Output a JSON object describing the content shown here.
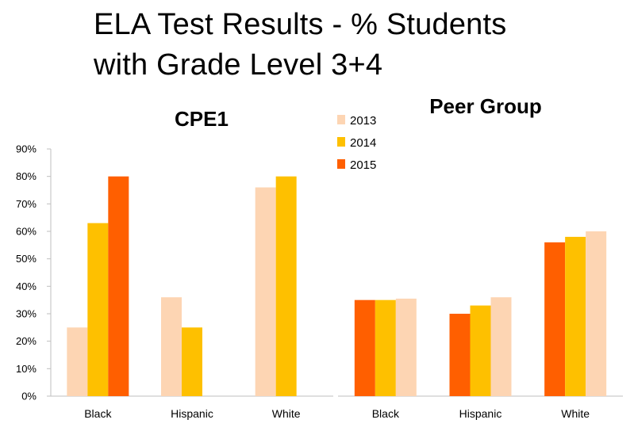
{
  "title": {
    "line1": "ELA Test Results - % Students",
    "line2": "with Grade Level 3+4"
  },
  "colors": {
    "2013": "#fdd5b3",
    "2014": "#fec000",
    "2015": "#ff5f00",
    "axis": "#bfbfbf"
  },
  "legend": [
    {
      "name": "2013",
      "color": "#fdd5b3"
    },
    {
      "name": "2014",
      "color": "#fec000"
    },
    {
      "name": "2015",
      "color": "#ff5f00"
    }
  ],
  "chart_data": [
    {
      "type": "bar",
      "title": "CPE1",
      "categories": [
        "Black",
        "Hispanic",
        "White"
      ],
      "ylim": [
        0,
        0.9
      ],
      "yticks": [
        "0%",
        "10%",
        "20%",
        "30%",
        "40%",
        "50%",
        "60%",
        "70%",
        "80%",
        "90%"
      ],
      "series": [
        {
          "name": "2013",
          "color": "#fdd5b3",
          "values": [
            0.25,
            0.36,
            0.76
          ]
        },
        {
          "name": "2014",
          "color": "#fec000",
          "values": [
            0.63,
            0.25,
            0.8
          ]
        },
        {
          "name": "2015",
          "color": "#ff5f00",
          "values": [
            0.8,
            null,
            null
          ]
        }
      ],
      "legend": "top-right",
      "grid": false
    },
    {
      "type": "bar",
      "title": "Peer Group",
      "categories": [
        "Black",
        "Hispanic",
        "White"
      ],
      "ylim": [
        0,
        0.9
      ],
      "series": [
        {
          "color": "#ff5f00",
          "values": [
            0.35,
            0.3,
            0.56
          ]
        },
        {
          "color": "#fec000",
          "values": [
            0.35,
            0.33,
            0.58
          ]
        },
        {
          "color": "#fdd5b3",
          "values": [
            0.355,
            0.36,
            0.6
          ]
        }
      ],
      "grid": false
    }
  ]
}
